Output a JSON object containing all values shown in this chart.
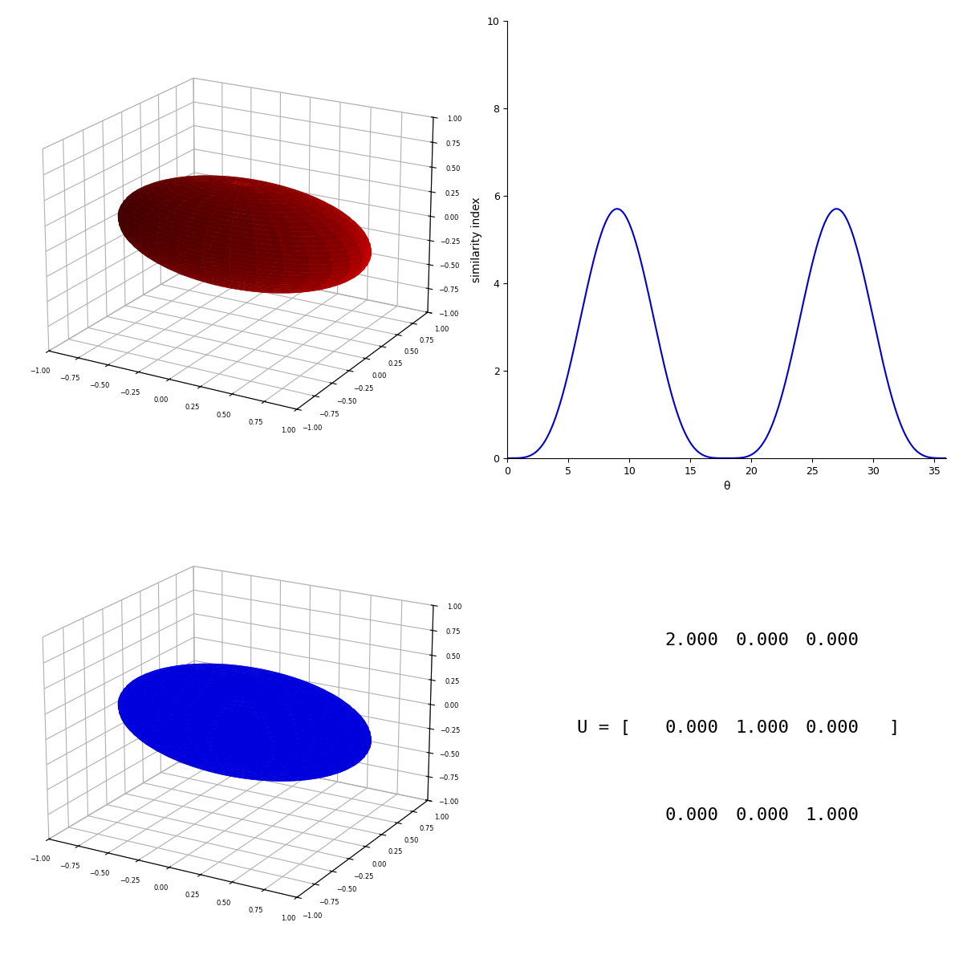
{
  "red_ellipsoid": {
    "a": 1.0,
    "b": 0.5,
    "c": 0.5,
    "color": "#dd0000",
    "alpha": 1.0,
    "shade": true
  },
  "blue_ellipsoid": {
    "a": 1.0,
    "b": 0.5,
    "c": 0.5,
    "color": "#0000dd",
    "alpha": 1.0,
    "shade": false
  },
  "plot_curve": {
    "x_max": 36,
    "period": 18.0,
    "power": 4,
    "amplitude": 5.7,
    "color": "#0000cc",
    "linewidth": 1.5,
    "ylabel": "similarity index",
    "xlabel": "θ",
    "ylim": [
      0,
      10
    ],
    "xlim": [
      0,
      36
    ],
    "yticks": [
      0,
      2,
      4,
      6,
      8,
      10
    ],
    "xticks": [
      0,
      5,
      10,
      15,
      20,
      25,
      30,
      35
    ]
  },
  "matrix_text": {
    "U_label": "U = [",
    "bracket_close": "]",
    "row1": [
      "2.000",
      "0.000",
      "0.000"
    ],
    "row2": [
      "0.000",
      "1.000",
      "0.000"
    ],
    "row3": [
      "0.000",
      "0.000",
      "1.000"
    ],
    "fontsize": 16,
    "fontfamily": "monospace"
  },
  "axis_lim": [
    -1.0,
    1.0
  ],
  "axis_ticks": [
    -1.0,
    -0.75,
    -0.5,
    -0.25,
    0.0,
    0.25,
    0.5,
    0.75,
    1.0
  ],
  "elev": 20,
  "azim": -60
}
